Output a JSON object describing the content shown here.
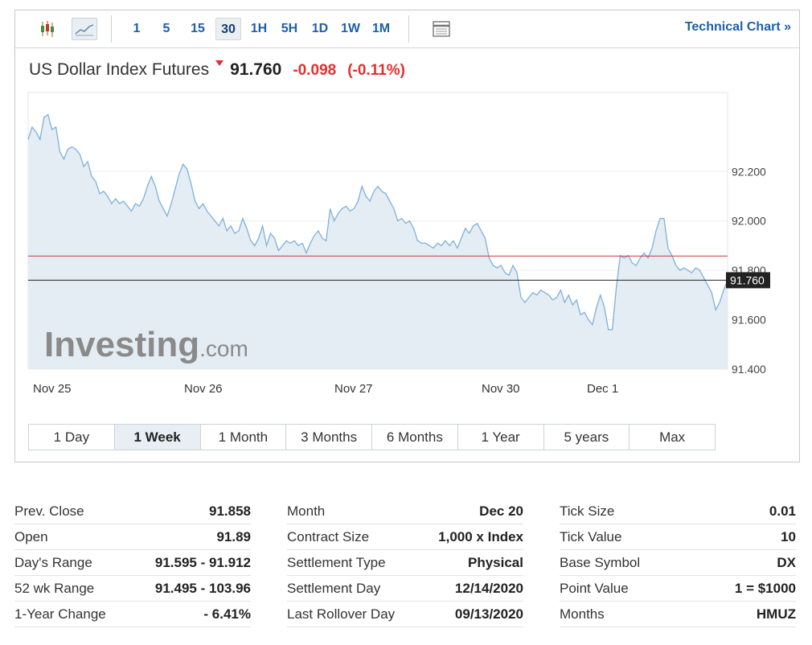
{
  "toolbar": {
    "intervals": [
      {
        "label": "1"
      },
      {
        "label": "5"
      },
      {
        "label": "15"
      },
      {
        "label": "30",
        "active": true
      },
      {
        "label": "1H"
      },
      {
        "label": "5H"
      },
      {
        "label": "1D"
      },
      {
        "label": "1W"
      },
      {
        "label": "1M"
      }
    ],
    "technical_chart_label": "Technical Chart »"
  },
  "instrument": {
    "name": "US Dollar Index Futures",
    "last": "91.760",
    "change": "-0.098",
    "change_pct": "(-0.11%)"
  },
  "colors": {
    "line": "#7eb0db",
    "area": "#e4edf4",
    "down": "#e62e2e",
    "link": "#1d5fa9",
    "ref_line": "#c83c3c"
  },
  "chart_data": {
    "type": "area",
    "watermark": "Investing.com",
    "x_labels": [
      "Nov 25",
      "Nov 26",
      "Nov 27",
      "Nov 30",
      "Dec 1"
    ],
    "y_ticks": [
      91.4,
      91.6,
      91.8,
      92.0,
      92.2
    ],
    "y_tick_labels": [
      "91.400",
      "91.600",
      "91.800",
      "92.000",
      "92.200"
    ],
    "ylim": [
      91.4,
      92.52
    ],
    "grid": true,
    "ref_prev_close": 91.858,
    "current_value": 91.76,
    "current_label": "91.760",
    "values": [
      92.33,
      92.38,
      92.36,
      92.33,
      92.42,
      92.43,
      92.37,
      92.38,
      92.28,
      92.25,
      92.29,
      92.3,
      92.29,
      92.27,
      92.22,
      92.24,
      92.18,
      92.16,
      92.11,
      92.12,
      92.1,
      92.07,
      92.09,
      92.07,
      92.08,
      92.06,
      92.04,
      92.07,
      92.06,
      92.09,
      92.14,
      92.18,
      92.14,
      92.08,
      92.05,
      92.02,
      92.07,
      92.13,
      92.19,
      92.23,
      92.21,
      92.15,
      92.08,
      92.05,
      92.07,
      92.04,
      92.02,
      92.0,
      91.98,
      92.01,
      91.96,
      91.98,
      91.95,
      91.96,
      92.01,
      91.97,
      91.92,
      91.9,
      91.93,
      91.98,
      91.9,
      91.95,
      91.93,
      91.88,
      91.9,
      91.92,
      91.91,
      91.92,
      91.9,
      91.91,
      91.87,
      91.91,
      91.94,
      91.96,
      91.93,
      91.92,
      92.05,
      92.0,
      92.03,
      92.05,
      92.06,
      92.04,
      92.05,
      92.08,
      92.14,
      92.1,
      92.08,
      92.12,
      92.14,
      92.12,
      92.11,
      92.08,
      92.05,
      92.0,
      92.01,
      91.99,
      92.0,
      91.97,
      91.92,
      91.91,
      91.91,
      91.9,
      91.89,
      91.91,
      91.9,
      91.92,
      91.9,
      91.92,
      91.89,
      91.93,
      91.97,
      91.95,
      91.98,
      91.99,
      91.96,
      91.93,
      91.85,
      91.82,
      91.81,
      91.82,
      91.79,
      91.78,
      91.82,
      91.79,
      91.69,
      91.67,
      91.69,
      91.71,
      91.7,
      91.72,
      91.71,
      91.7,
      91.68,
      91.69,
      91.72,
      91.67,
      91.7,
      91.66,
      91.68,
      91.62,
      91.63,
      91.6,
      91.58,
      91.65,
      91.7,
      91.65,
      91.56,
      91.56,
      91.73,
      91.86,
      91.85,
      91.86,
      91.83,
      91.82,
      91.85,
      91.87,
      91.85,
      91.89,
      91.96,
      92.01,
      92.01,
      91.89,
      91.86,
      91.82,
      91.8,
      91.81,
      91.8,
      91.79,
      91.81,
      91.8,
      91.77,
      91.74,
      91.71,
      91.64,
      91.67,
      91.72,
      91.76
    ]
  },
  "range_tabs": [
    {
      "label": "1 Day"
    },
    {
      "label": "1 Week",
      "active": true
    },
    {
      "label": "1 Month"
    },
    {
      "label": "3 Months"
    },
    {
      "label": "6 Months"
    },
    {
      "label": "1 Year"
    },
    {
      "label": "5 years"
    },
    {
      "label": "Max"
    }
  ],
  "stats": {
    "col1": [
      {
        "label": "Prev. Close",
        "value": "91.858"
      },
      {
        "label": "Open",
        "value": "91.89"
      },
      {
        "label": "Day's Range",
        "value": "91.595 - 91.912"
      },
      {
        "label": "52 wk Range",
        "value": "91.495 - 103.96"
      },
      {
        "label": "1-Year Change",
        "value": "- 6.41%"
      }
    ],
    "col2": [
      {
        "label": "Month",
        "value": "Dec 20"
      },
      {
        "label": "Contract Size",
        "value": "1,000 x Index"
      },
      {
        "label": "Settlement Type",
        "value": "Physical"
      },
      {
        "label": "Settlement Day",
        "value": "12/14/2020"
      },
      {
        "label": "Last Rollover Day",
        "value": "09/13/2020"
      }
    ],
    "col3": [
      {
        "label": "Tick Size",
        "value": "0.01"
      },
      {
        "label": "Tick Value",
        "value": "10"
      },
      {
        "label": "Base Symbol",
        "value": "DX"
      },
      {
        "label": "Point Value",
        "value": "1 = $1000"
      },
      {
        "label": "Months",
        "value": "HMUZ"
      }
    ]
  }
}
